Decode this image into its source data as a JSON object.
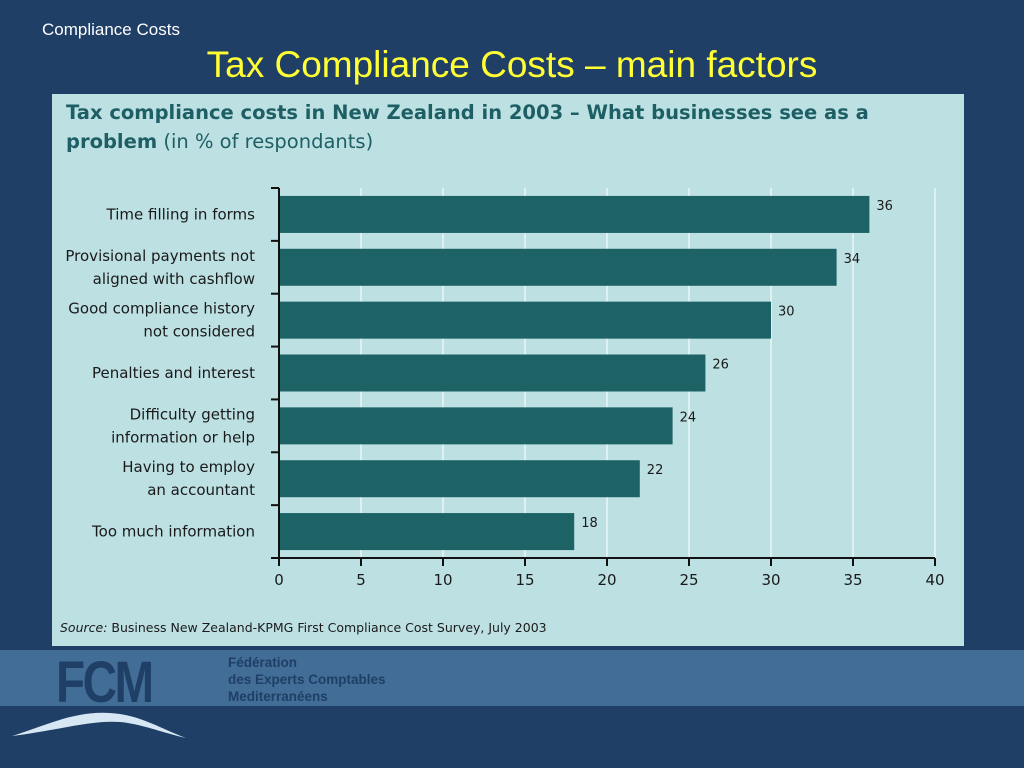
{
  "header": {
    "section_label": "Compliance Costs",
    "title": "Tax Compliance Costs – main factors"
  },
  "chart_title": {
    "bold": "Tax compliance costs in New Zealand in 2003 – What businesses see as a problem",
    "normal": "(in % of respondants)"
  },
  "chart_data": {
    "type": "bar",
    "orientation": "horizontal",
    "categories": [
      [
        "Time filling in forms"
      ],
      [
        "Provisional payments not",
        "aligned  with cashflow"
      ],
      [
        "Good compliance history",
        "not considered"
      ],
      [
        "Penalties and interest"
      ],
      [
        "Difficulty getting",
        "information or help"
      ],
      [
        "Having to employ",
        "an accountant"
      ],
      [
        "Too much information"
      ]
    ],
    "values": [
      36,
      34,
      30,
      26,
      24,
      22,
      18
    ],
    "xticks": [
      "0",
      "5",
      "10",
      "15",
      "20",
      "25",
      "30",
      "35",
      "40"
    ],
    "xlim": [
      0,
      40
    ],
    "grid": true,
    "bar_color": "#1d6265"
  },
  "source": {
    "label": "Source:",
    "text": "Business New Zealand-KPMG First Compliance Cost Survey, July 2003"
  },
  "footer": {
    "logo": "FCM",
    "org_lines": [
      "Fédération",
      "des Experts Comptables",
      "Mediterranéens"
    ]
  }
}
